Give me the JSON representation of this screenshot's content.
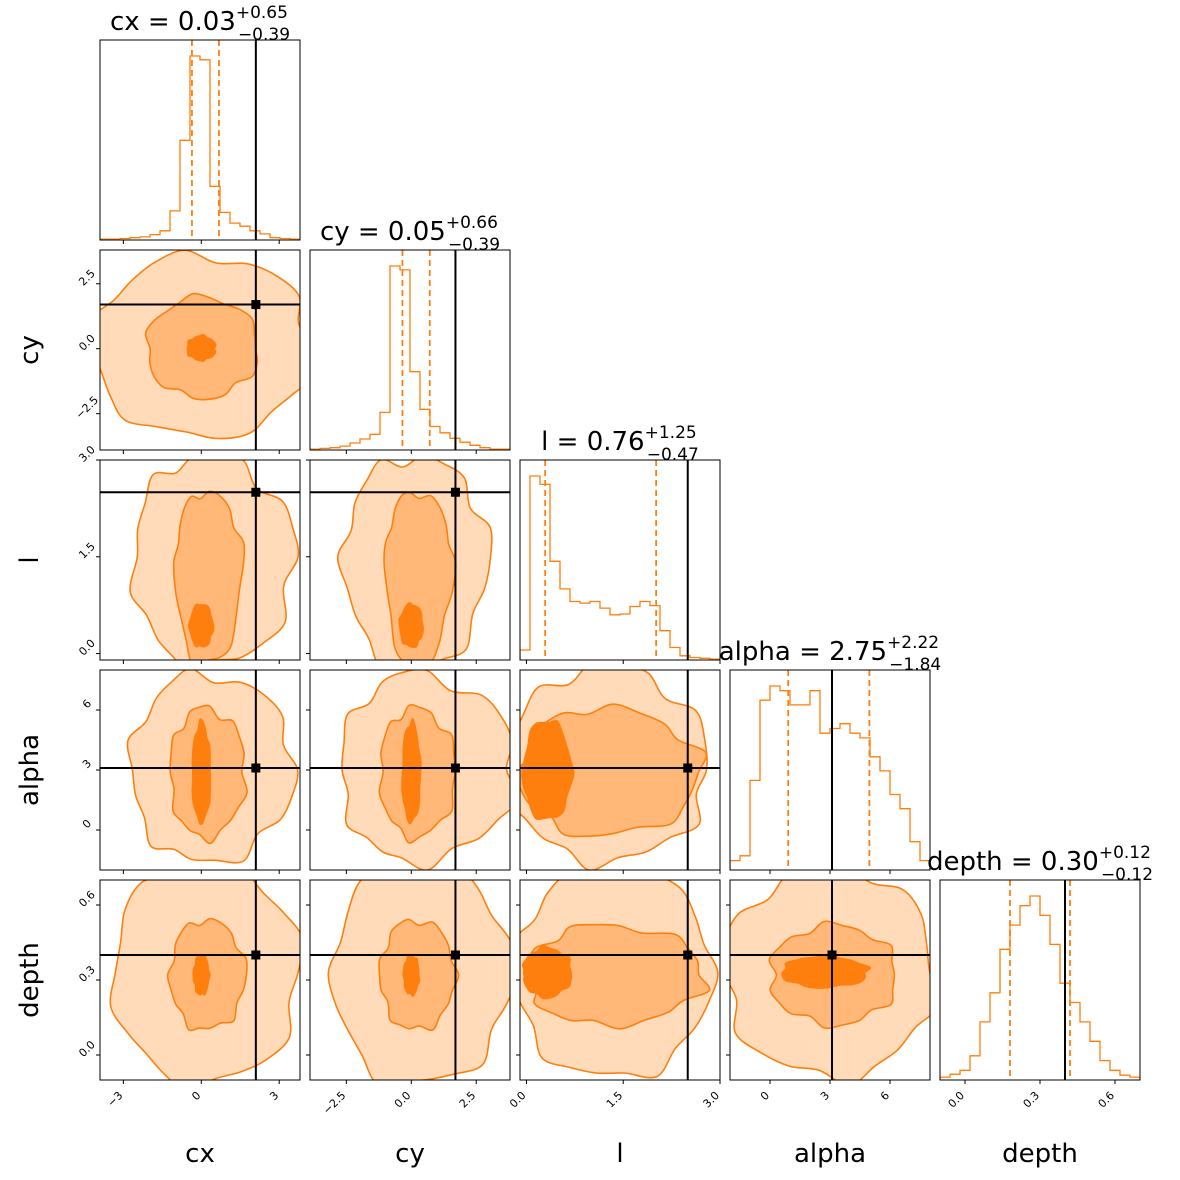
{
  "chart_data": {
    "type": "corner",
    "parameters": [
      "cx",
      "cy",
      "l",
      "alpha",
      "depth"
    ],
    "axis_labels": [
      "cx",
      "cy",
      "l",
      "alpha",
      "depth"
    ],
    "ranges": {
      "cx": [
        -3.9,
        3.8
      ],
      "cy": [
        -3.9,
        3.8
      ],
      "l": [
        -0.1,
        3.0
      ],
      "alpha": [
        -2.0,
        8.0
      ],
      "depth": [
        -0.1,
        0.7
      ]
    },
    "ticks": {
      "cx": [
        {
          "v": -3,
          "label": "−3"
        },
        {
          "v": 0,
          "label": "0"
        },
        {
          "v": 3,
          "label": "3"
        }
      ],
      "cy": [
        {
          "v": -2.5,
          "label": "−2.5"
        },
        {
          "v": 0.0,
          "label": "0.0"
        },
        {
          "v": 2.5,
          "label": "2.5"
        }
      ],
      "l": [
        {
          "v": 0.0,
          "label": "0.0"
        },
        {
          "v": 1.5,
          "label": "1.5"
        },
        {
          "v": 3.0,
          "label": "3.0"
        }
      ],
      "alpha": [
        {
          "v": 0,
          "label": "0"
        },
        {
          "v": 3,
          "label": "3"
        },
        {
          "v": 6,
          "label": "6"
        }
      ],
      "depth": [
        {
          "v": 0.0,
          "label": "0.0"
        },
        {
          "v": 0.3,
          "label": "0.3"
        },
        {
          "v": 0.6,
          "label": "0.6"
        }
      ]
    },
    "truths": {
      "cx": 2.1,
      "cy": 1.7,
      "l": 2.5,
      "alpha": 3.1,
      "depth": 0.4
    },
    "summaries": {
      "cx": {
        "median": 0.03,
        "plus": 0.65,
        "minus": 0.39,
        "text_main": "cx = 0.03",
        "text_plus": "+0.65",
        "text_minus": "−0.39"
      },
      "cy": {
        "median": 0.05,
        "plus": 0.66,
        "minus": 0.39,
        "text_main": "cy = 0.05",
        "text_plus": "+0.66",
        "text_minus": "−0.39"
      },
      "l": {
        "median": 0.76,
        "plus": 1.25,
        "minus": 0.47,
        "text_main": "l = 0.76",
        "text_plus": "+1.25",
        "text_minus": "−0.47"
      },
      "alpha": {
        "median": 2.75,
        "plus": 2.22,
        "minus": 1.84,
        "text_main": "alpha = 2.75",
        "text_plus": "+2.22",
        "text_minus": "−1.84"
      },
      "depth": {
        "median": 0.3,
        "plus": 0.12,
        "minus": 0.12,
        "text_main": "depth = 0.30",
        "text_plus": "+0.12",
        "text_minus": "−0.12"
      }
    },
    "histograms": {
      "cx": {
        "edges_start": -3.9,
        "bin_width": 0.385,
        "counts": [
          1,
          1,
          2,
          3,
          4,
          7,
          12,
          38,
          130,
          240,
          235,
          70,
          36,
          22,
          18,
          12,
          8,
          3,
          2,
          1
        ]
      },
      "cy": {
        "edges_start": -3.9,
        "bin_width": 0.385,
        "counts": [
          1,
          2,
          3,
          5,
          9,
          14,
          20,
          48,
          235,
          230,
          100,
          52,
          30,
          22,
          15,
          10,
          6,
          3,
          1,
          1
        ]
      },
      "l": {
        "edges_start": -0.1,
        "bin_width": 0.155,
        "counts": [
          12,
          220,
          210,
          118,
          85,
          70,
          68,
          70,
          62,
          54,
          55,
          64,
          70,
          65,
          35,
          15,
          5,
          3,
          2,
          1
        ]
      },
      "alpha": {
        "edges_start": -2.0,
        "bin_width": 0.5,
        "counts": [
          10,
          15,
          95,
          180,
          195,
          190,
          175,
          175,
          190,
          145,
          150,
          155,
          145,
          140,
          120,
          105,
          80,
          65,
          30,
          10
        ]
      },
      "depth": {
        "edges_start": -0.1,
        "bin_width": 0.04,
        "counts": [
          3,
          6,
          10,
          25,
          60,
          90,
          135,
          160,
          180,
          190,
          170,
          140,
          100,
          80,
          60,
          40,
          20,
          10,
          5,
          3
        ]
      }
    },
    "contour_levels": [
      "outer",
      "middle",
      "inner"
    ]
  }
}
